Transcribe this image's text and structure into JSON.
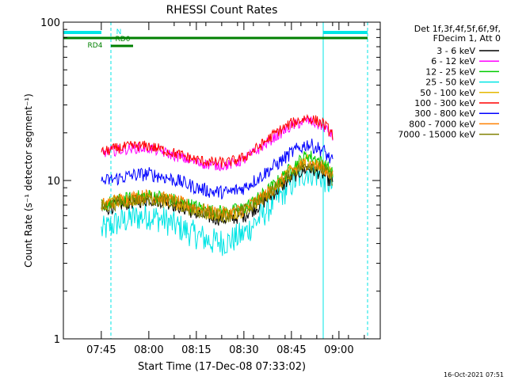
{
  "chart_data": {
    "type": "line",
    "title": "RHESSI Count Rates",
    "ylabel": "Count Rate (s⁻¹ detector segment⁻¹)",
    "xlabel": "Start Time (17-Dec-08 07:33:02)",
    "x_unit": "minutes after 07:33:02",
    "xlim": [
      0,
      100
    ],
    "ylim": [
      1,
      100
    ],
    "yscale": "log",
    "x_ticks": [
      "07:45",
      "08:00",
      "08:15",
      "08:30",
      "08:45",
      "09:00"
    ],
    "y_ticks": [
      "1",
      "10",
      "100"
    ],
    "legend_header": [
      "Det 1f,3f,4f,5f,6f,9f,",
      "FDecim 1, Att 0"
    ],
    "legend_position": "right",
    "x": [
      12,
      17,
      22,
      27,
      32,
      37,
      42,
      47,
      52,
      57,
      62,
      67,
      72,
      77,
      82,
      85
    ],
    "series": [
      {
        "name": "3 - 6 keV",
        "color": "#000000",
        "values": [
          6.5,
          7.0,
          7.3,
          7.6,
          7.4,
          6.8,
          6.2,
          5.8,
          5.7,
          6.0,
          7.0,
          8.5,
          10.5,
          12.0,
          11.0,
          9.5
        ]
      },
      {
        "name": "6 - 12 keV",
        "color": "#ff00ff",
        "values": [
          15.0,
          15.5,
          16.0,
          16.0,
          15.0,
          14.0,
          13.0,
          12.5,
          12.5,
          13.5,
          16.0,
          19.0,
          22.0,
          24.0,
          22.0,
          19.0
        ]
      },
      {
        "name": "12 - 25 keV",
        "color": "#00cc00",
        "values": [
          7.0,
          7.4,
          7.8,
          8.0,
          7.8,
          7.3,
          6.8,
          6.4,
          6.3,
          6.7,
          7.8,
          9.5,
          12.0,
          14.5,
          13.0,
          11.0
        ]
      },
      {
        "name": "25 - 50 keV",
        "color": "#00e5e5",
        "values": [
          4.8,
          5.4,
          5.8,
          6.0,
          5.6,
          5.0,
          4.5,
          4.1,
          4.1,
          4.6,
          5.8,
          7.5,
          9.5,
          11.5,
          10.5,
          9.0
        ]
      },
      {
        "name": "50 - 100 keV",
        "color": "#e5b800",
        "values": [
          6.8,
          7.3,
          7.6,
          7.8,
          7.6,
          7.1,
          6.6,
          6.2,
          6.1,
          6.5,
          7.6,
          9.2,
          11.5,
          13.5,
          12.5,
          10.5
        ]
      },
      {
        "name": "100 - 300 keV",
        "color": "#ff0000",
        "values": [
          15.0,
          16.0,
          16.5,
          16.5,
          15.5,
          14.5,
          13.5,
          13.0,
          13.0,
          14.0,
          16.5,
          20.0,
          23.0,
          25.0,
          23.0,
          19.5
        ]
      },
      {
        "name": "300 - 800 keV",
        "color": "#0000ff",
        "values": [
          9.8,
          10.3,
          10.8,
          11.0,
          10.5,
          9.8,
          9.0,
          8.5,
          8.4,
          9.0,
          10.5,
          12.5,
          15.0,
          17.0,
          15.5,
          13.0
        ]
      },
      {
        "name": "800 - 7000 keV",
        "color": "#ff8000",
        "values": [
          7.0,
          7.5,
          7.8,
          8.0,
          7.7,
          7.2,
          6.7,
          6.3,
          6.2,
          6.6,
          7.6,
          9.2,
          11.5,
          13.0,
          12.0,
          10.5
        ]
      },
      {
        "name": "7000 - 15000 keV",
        "color": "#808000",
        "values": [
          6.8,
          7.2,
          7.5,
          7.7,
          7.4,
          6.9,
          6.4,
          6.1,
          6.0,
          6.4,
          7.4,
          9.0,
          11.2,
          12.8,
          11.8,
          10.2
        ]
      }
    ],
    "attenuator_markers": {
      "labels": [
        "N",
        "RD0",
        "RD4"
      ],
      "bars": [
        {
          "color": "#00e5e5",
          "x_start": 0,
          "x_end": 12
        },
        {
          "color": "#00e5e5",
          "x_start": 82,
          "x_end": 96
        },
        {
          "color": "#008000",
          "x_start": 0,
          "x_end": 96
        },
        {
          "color": "#008000",
          "x_start": 15,
          "x_end": 22
        }
      ]
    },
    "vertical_lines": [
      {
        "x": 0,
        "style": "solid",
        "color": "#00e5e5"
      },
      {
        "x": 15,
        "style": "dashed",
        "color": "#00e5e5"
      },
      {
        "x": 82,
        "style": "solid",
        "color": "#00e5e5"
      },
      {
        "x": 96,
        "style": "dashed",
        "color": "#00e5e5"
      }
    ],
    "footer_timestamp": "16-Oct-2021 07:51"
  }
}
